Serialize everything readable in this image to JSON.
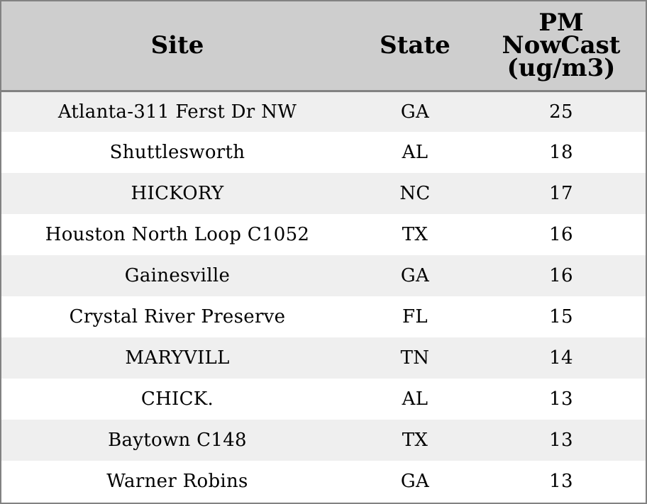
{
  "chart_data": {
    "type": "table",
    "columns": [
      "Site",
      "State",
      "PM NowCast (ug/m3)"
    ],
    "header_lines": {
      "site": [
        "Site"
      ],
      "state": [
        "State"
      ],
      "value": [
        "PM",
        "NowCast",
        "(ug/m3)"
      ]
    },
    "rows": [
      {
        "site": "Atlanta-311 Ferst Dr NW",
        "state": "GA",
        "value": "25"
      },
      {
        "site": "Shuttlesworth",
        "state": "AL",
        "value": "18"
      },
      {
        "site": "HICKORY",
        "state": "NC",
        "value": "17"
      },
      {
        "site": "Houston North Loop C1052",
        "state": "TX",
        "value": "16"
      },
      {
        "site": "Gainesville",
        "state": "GA",
        "value": "16"
      },
      {
        "site": "Crystal River Preserve",
        "state": "FL",
        "value": "15"
      },
      {
        "site": "MARYVILL",
        "state": "TN",
        "value": "14"
      },
      {
        "site": "CHICK.",
        "state": "AL",
        "value": "13"
      },
      {
        "site": "Baytown C148",
        "state": "TX",
        "value": "13"
      },
      {
        "site": "Warner Robins",
        "state": "GA",
        "value": "13"
      }
    ],
    "colors": {
      "header_bg": "#cecece",
      "stripe_bg": "#efefef",
      "border": "#828282"
    }
  }
}
